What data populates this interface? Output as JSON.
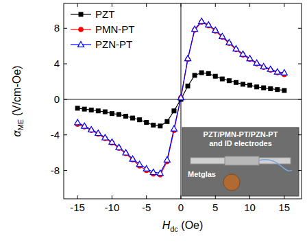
{
  "chart_data": {
    "type": "line",
    "xlabel": [
      "H",
      "dc",
      " (Oe)"
    ],
    "ylabel": [
      "α",
      "ME",
      " (V/cm-Oe)"
    ],
    "x": [
      -15,
      -14,
      -13,
      -12,
      -11,
      -10,
      -9,
      -8,
      -7,
      -6,
      -5,
      -4,
      -3,
      -2,
      -1,
      0,
      1,
      2,
      3,
      4,
      5,
      6,
      7,
      8,
      9,
      10,
      11,
      12,
      13,
      14,
      15
    ],
    "series": [
      {
        "name": "PZT",
        "color": "#000000",
        "marker": "square",
        "values": [
          -1.0,
          -1.1,
          -1.2,
          -1.3,
          -1.4,
          -1.6,
          -1.7,
          -1.9,
          -2.1,
          -2.3,
          -2.6,
          -2.9,
          -3.0,
          -2.5,
          -1.3,
          0.0,
          1.5,
          2.7,
          3.0,
          2.9,
          2.6,
          2.3,
          2.1,
          1.9,
          1.7,
          1.6,
          1.4,
          1.3,
          1.2,
          1.1,
          1.0
        ]
      },
      {
        "name": "PMN-PT",
        "color": "#ff0000",
        "marker": "circle",
        "values": [
          -2.8,
          -3.1,
          -3.5,
          -3.9,
          -4.4,
          -4.9,
          -5.5,
          -6.1,
          -6.8,
          -7.5,
          -8.0,
          -8.4,
          -8.5,
          -7.0,
          -3.5,
          0.2,
          4.5,
          7.8,
          8.7,
          8.3,
          7.7,
          7.0,
          6.3,
          5.6,
          5.0,
          4.5,
          4.0,
          3.6,
          3.3,
          3.0,
          2.8
        ]
      },
      {
        "name": "PZN-PT",
        "color": "#0000ff",
        "marker": "open-triangle",
        "values": [
          -2.6,
          -3.0,
          -3.4,
          -3.8,
          -4.3,
          -4.8,
          -5.4,
          -6.0,
          -6.7,
          -7.3,
          -7.8,
          -8.2,
          -8.3,
          -6.8,
          -3.3,
          0.2,
          4.6,
          7.9,
          8.8,
          8.4,
          7.8,
          7.1,
          6.4,
          5.7,
          5.1,
          4.6,
          4.1,
          3.7,
          3.4,
          3.1,
          3.0
        ]
      }
    ],
    "xlim": [
      -17,
      17.5
    ],
    "xticks": [
      -15,
      -10,
      -5,
      0,
      5,
      10,
      15
    ],
    "ylim": [
      -11.2,
      10.8
    ],
    "yticks": [
      -8,
      -4,
      0,
      4,
      8
    ],
    "legend": "upper left",
    "annotations": [
      "PZT/PMN-PT/PZN-PT",
      "and ID electrodes",
      "Metglas"
    ]
  }
}
